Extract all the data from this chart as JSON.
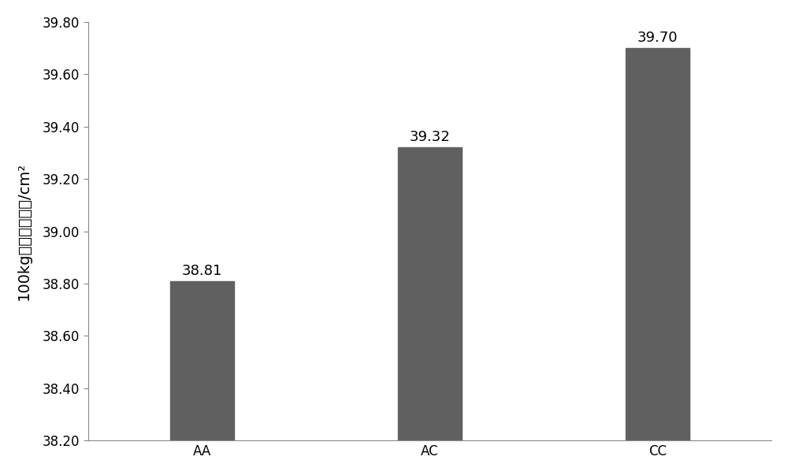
{
  "categories": [
    "AA",
    "AC",
    "CC"
  ],
  "values": [
    38.81,
    39.32,
    39.7
  ],
  "bar_color": "#606060",
  "bar_width": 0.28,
  "ylim": [
    38.2,
    39.8
  ],
  "yticks": [
    38.2,
    38.4,
    38.6,
    38.8,
    39.0,
    39.2,
    39.4,
    39.6,
    39.8
  ],
  "ylabel": "100kg体重眼肌面积/cm²",
  "ylabel_fontsize": 14,
  "tick_fontsize": 12,
  "label_fontsize": 13,
  "value_labels": [
    "38.81",
    "39.32",
    "39.70"
  ],
  "background_color": "#ffffff",
  "spine_color": "#888888"
}
